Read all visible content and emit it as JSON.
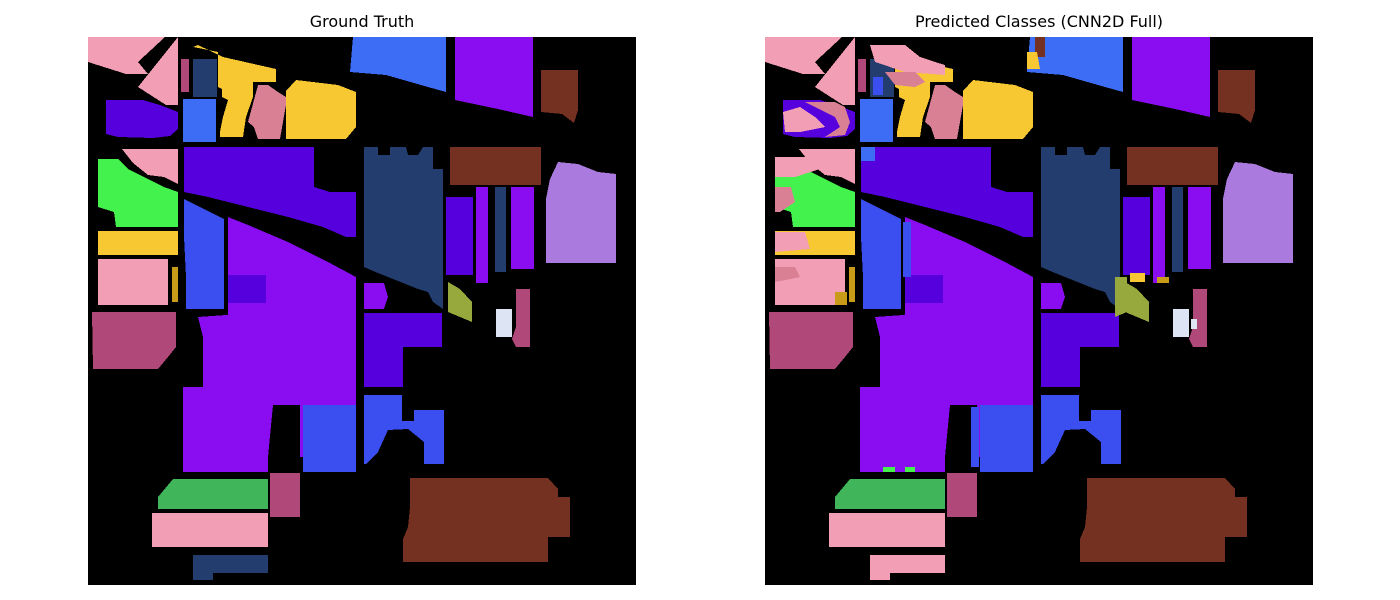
{
  "figure": {
    "left_title": "Ground Truth",
    "right_title": "Predicted Classes (CNN2D Full)"
  },
  "palette": {
    "background": "#000000",
    "pink": "#f29eb4",
    "navy": "#223d6e",
    "gold": "#f8c832",
    "blue": "#3d6cf5",
    "violet": "#5500dd",
    "purple": "#8a0cf0",
    "brown": "#743121",
    "lilac": "#ab7adf",
    "green": "#44f24e",
    "royal": "#3b4ef0",
    "dark_green": "#40b55a",
    "magenta": "#b04879",
    "olive": "#97a83d",
    "white": "#dde4f3",
    "mauve": "#d98095",
    "dark_gold": "#c89b18"
  }
}
